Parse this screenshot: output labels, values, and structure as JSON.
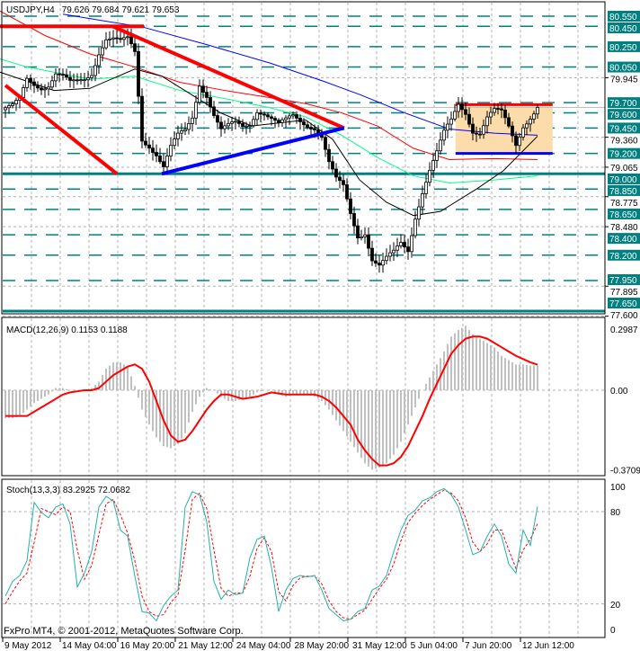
{
  "header": {
    "symbol": "USDJPY,H4",
    "ohlc": "79.626 79.684 79.621 79.653"
  },
  "copyright": "FxPro MT4, © 2001-2012, MetaQuotes Software Corp.",
  "colors": {
    "level": "#008080",
    "bull": "#ffffff",
    "bear": "#000000",
    "trend_red": "#ff0000",
    "trend_blue": "#0000ff",
    "range_box": "#fcdcaa",
    "macd_hist": "#c0c0c0",
    "macd_signal": "#ff0000",
    "stoch_main": "#20b2aa",
    "stoch_signal": "#ff0000"
  },
  "chart_data": [
    {
      "type": "candlestick",
      "title": "USDJPY,H4",
      "ylim": [
        77.6,
        80.6
      ],
      "level_labels": [
        "80.550",
        "80.450",
        "80.250",
        "80.050",
        "79.700",
        "79.600",
        "79.450",
        "79.200",
        "79.000",
        "78.850",
        "78.650",
        "78.400",
        "78.200",
        "77.950",
        "77.650"
      ],
      "solid_levels": [
        "79.000",
        "77.650"
      ],
      "price_ticks": [
        "79.945",
        "79.360",
        "79.065",
        "78.775",
        "78.480",
        "77.895",
        "77.600"
      ],
      "current_price": 79.653,
      "close": [
        79.65,
        79.65,
        79.7,
        79.91,
        79.88,
        79.87,
        79.9,
        80.0,
        79.95,
        79.87,
        79.88,
        79.92,
        80.0,
        80.22,
        80.35,
        80.33,
        80.28,
        80.3,
        80.18,
        79.34,
        79.3,
        79.22,
        79.08,
        79.25,
        79.35,
        79.4,
        79.55,
        79.9,
        79.8,
        79.6,
        79.43,
        79.45,
        79.47,
        79.45,
        79.5,
        79.65,
        79.62,
        79.55,
        79.47,
        79.5,
        79.55,
        79.52,
        79.5,
        79.48,
        79.38,
        79.1,
        78.92,
        78.85,
        78.6,
        78.4,
        78.45,
        78.18,
        78.1,
        78.15,
        78.2,
        78.3,
        78.25,
        78.6,
        78.85,
        79.05,
        79.2,
        79.38,
        79.5,
        79.68,
        79.62,
        79.45,
        79.42,
        79.55,
        79.6,
        79.58,
        79.45,
        79.3,
        79.5,
        79.58,
        79.653
      ],
      "moving_averages": [
        {
          "color": "#0000ff",
          "points": [
            [
              8,
              80.57
            ],
            [
              19.25,
              80.44
            ],
            [
              28,
              80.27
            ],
            [
              36.75,
              80.09
            ],
            [
              44.25,
              79.91
            ],
            [
              49.25,
              79.78
            ],
            [
              55.5,
              79.6
            ],
            [
              61.75,
              79.44
            ],
            [
              68,
              79.4
            ],
            [
              74,
              79.38
            ]
          ]
        },
        {
          "color": "#ff0000",
          "points": [
            [
              -0.75,
              80.6
            ],
            [
              5.5,
              80.36
            ],
            [
              11.75,
              80.18
            ],
            [
              18,
              80.05
            ],
            [
              24.25,
              79.9
            ],
            [
              30.5,
              79.82
            ],
            [
              36.75,
              79.75
            ],
            [
              41.75,
              79.69
            ],
            [
              46.75,
              79.6
            ],
            [
              51.75,
              79.47
            ],
            [
              56.75,
              79.25
            ],
            [
              61.75,
              79.14
            ],
            [
              68,
              79.15
            ],
            [
              74,
              79.14
            ]
          ]
        },
        {
          "color": "#00ff7f",
          "points": [
            [
              -0.75,
              80.13
            ],
            [
              3,
              80.05
            ],
            [
              6.75,
              80.0
            ],
            [
              11.75,
              79.93
            ],
            [
              18,
              79.96
            ],
            [
              24.25,
              79.82
            ],
            [
              30.5,
              79.74
            ],
            [
              36.75,
              79.65
            ],
            [
              41.75,
              79.56
            ],
            [
              46.75,
              79.38
            ],
            [
              51.75,
              79.16
            ],
            [
              56.75,
              78.98
            ],
            [
              61.75,
              78.91
            ],
            [
              68,
              78.94
            ],
            [
              74,
              78.98
            ]
          ]
        },
        {
          "color": "#000000",
          "points": [
            [
              -0.75,
              80.0
            ],
            [
              3,
              79.91
            ],
            [
              6.75,
              79.82
            ],
            [
              11.75,
              79.84
            ],
            [
              18,
              80.03
            ],
            [
              21.75,
              79.96
            ],
            [
              26.75,
              79.74
            ],
            [
              29.9,
              79.6
            ],
            [
              34.25,
              79.47
            ],
            [
              41.75,
              79.53
            ],
            [
              45.5,
              79.34
            ],
            [
              49.25,
              78.94
            ],
            [
              53,
              78.72
            ],
            [
              56.75,
              78.59
            ],
            [
              60.5,
              78.63
            ],
            [
              65.5,
              78.85
            ],
            [
              69.25,
              79.03
            ],
            [
              74,
              79.37
            ]
          ]
        }
      ],
      "objects": [
        {
          "kind": "line",
          "color": "#ff0000",
          "from": [
            -0.75,
            80.45
          ],
          "to": [
            19.25,
            80.45
          ]
        },
        {
          "kind": "line",
          "color": "#ff0000",
          "from": [
            14.9,
            80.45
          ],
          "to": [
            47.1,
            79.45
          ]
        },
        {
          "kind": "line",
          "color": "#ff0000",
          "from": [
            0,
            79.87
          ],
          "to": [
            15.5,
            79.0
          ]
        },
        {
          "kind": "line",
          "color": "#0000ff",
          "from": [
            21.75,
            79.0
          ],
          "to": [
            47.1,
            79.45
          ]
        },
        {
          "kind": "rect",
          "from": [
            62.6,
            79.68
          ],
          "to": [
            76.1,
            79.2
          ]
        }
      ]
    },
    {
      "type": "bar",
      "title": "MACD(12,26,9) 0.1153 0.1188",
      "ylim": [
        -0.3709,
        0.2987
      ],
      "tick_labels": [
        "0.2987",
        "0.00",
        "-0.3709"
      ],
      "histogram": [
        -0.13,
        -0.13,
        -0.12,
        -0.09,
        -0.06,
        -0.04,
        -0.02,
        0.01,
        0.01,
        0.0,
        0.0,
        0.0,
        0.01,
        0.04,
        0.1,
        0.13,
        0.13,
        0.11,
        0.02,
        -0.09,
        -0.16,
        -0.22,
        -0.26,
        -0.27,
        -0.25,
        -0.2,
        -0.1,
        -0.03,
        0.01,
        0.0,
        -0.03,
        -0.05,
        -0.05,
        -0.04,
        -0.03,
        -0.01,
        0.0,
        0.0,
        -0.02,
        -0.03,
        -0.02,
        -0.02,
        -0.02,
        -0.03,
        -0.05,
        -0.09,
        -0.14,
        -0.19,
        -0.24,
        -0.29,
        -0.34,
        -0.37,
        -0.36,
        -0.34,
        -0.3,
        -0.24,
        -0.16,
        -0.08,
        0.0,
        0.06,
        0.12,
        0.18,
        0.25,
        0.28,
        0.3,
        0.26,
        0.24,
        0.22,
        0.2,
        0.16,
        0.14,
        0.12,
        0.12,
        0.115,
        0.1153
      ],
      "signal": [
        -0.12,
        -0.12,
        -0.12,
        -0.12,
        -0.1,
        -0.08,
        -0.06,
        -0.04,
        -0.02,
        -0.01,
        -0.005,
        0,
        0,
        0.01,
        0.04,
        0.07,
        0.09,
        0.11,
        0.12,
        0.1,
        0.04,
        -0.05,
        -0.14,
        -0.21,
        -0.24,
        -0.23,
        -0.19,
        -0.14,
        -0.09,
        -0.05,
        -0.02,
        -0.02,
        -0.03,
        -0.04,
        -0.035,
        -0.03,
        -0.02,
        -0.01,
        -0.015,
        -0.02,
        -0.02,
        -0.02,
        -0.02,
        -0.02,
        -0.03,
        -0.05,
        -0.08,
        -0.12,
        -0.16,
        -0.23,
        -0.28,
        -0.32,
        -0.35,
        -0.35,
        -0.34,
        -0.31,
        -0.26,
        -0.19,
        -0.12,
        -0.04,
        0.03,
        0.1,
        0.17,
        0.21,
        0.24,
        0.25,
        0.25,
        0.24,
        0.22,
        0.2,
        0.18,
        0.16,
        0.145,
        0.13,
        0.1188
      ]
    },
    {
      "type": "line",
      "title": "Stoch(13,3,3) 83.2925 72.0682",
      "ylim": [
        0,
        100
      ],
      "tick_labels": [
        "100",
        "80",
        "20",
        "0"
      ],
      "main": [
        25,
        34.6,
        38.5,
        48,
        86,
        79.5,
        76,
        83,
        85,
        72,
        31,
        40,
        54,
        83,
        90,
        87,
        68,
        64,
        38,
        15,
        14,
        9,
        19,
        25,
        29,
        83,
        93,
        91,
        73.5,
        34.6,
        23,
        29,
        26,
        27,
        50,
        62,
        64,
        44,
        15,
        29,
        36.5,
        38.5,
        37.5,
        38.5,
        29,
        17,
        13,
        9,
        10,
        15,
        17,
        29,
        31.6,
        38.5,
        54,
        68,
        77.5,
        81,
        87,
        89,
        93,
        95,
        91,
        83,
        68,
        52,
        54,
        64,
        72,
        64,
        46,
        40,
        68,
        58,
        83.29
      ],
      "signal": [
        20,
        28,
        35,
        40,
        60,
        82,
        80,
        78,
        83,
        80,
        55,
        36,
        45,
        65,
        85,
        88,
        78,
        66,
        48,
        25,
        15,
        12,
        13,
        21,
        26,
        55,
        88,
        92,
        82,
        55,
        30,
        25,
        27,
        27,
        38,
        56,
        63,
        54,
        28,
        22,
        32,
        37,
        38,
        38,
        33,
        22,
        15,
        11,
        10,
        13,
        16,
        23,
        30,
        36,
        46,
        61,
        73,
        79,
        84,
        88,
        91,
        94,
        92,
        87,
        76,
        60,
        54,
        59,
        68,
        68,
        55,
        43,
        55,
        62,
        72.07
      ]
    }
  ],
  "time_axis": [
    "9 May 2012",
    "14 May 04:00",
    "16 May 20:00",
    "21 May 12:00",
    "24 May 04:00",
    "28 May 20:00",
    "31 May 12:00",
    "5 Jun 04:00",
    "7 Jun 20:00",
    "12 Jun 12:00"
  ]
}
